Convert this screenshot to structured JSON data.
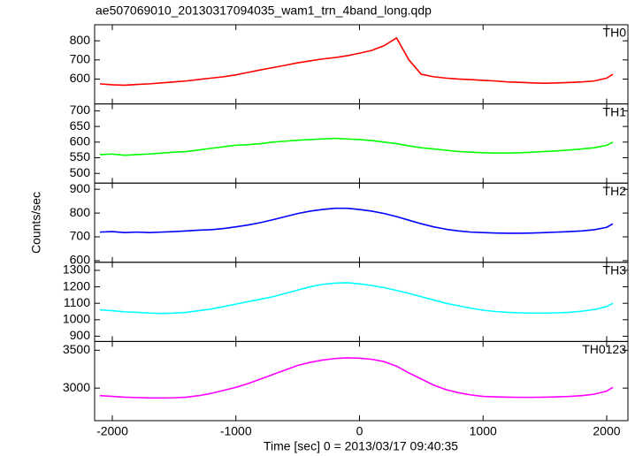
{
  "title": "ae507069010_20130317094035_wam1_trn_4band_long.qdp",
  "x_label": "Time [sec] 0 = 2013/03/17 09:40:35",
  "y_label": "Counts/sec",
  "chart_data": [
    {
      "type": "line",
      "label": "TH0",
      "color": "#ff0000",
      "x": [
        -2100,
        -2000,
        -1900,
        -1800,
        -1700,
        -1600,
        -1500,
        -1400,
        -1300,
        -1200,
        -1100,
        -1000,
        -900,
        -800,
        -700,
        -600,
        -500,
        -400,
        -300,
        -200,
        -100,
        0,
        100,
        200,
        300,
        400,
        500,
        600,
        700,
        800,
        900,
        1000,
        1100,
        1200,
        1300,
        1400,
        1500,
        1600,
        1700,
        1800,
        1900,
        2000,
        2050
      ],
      "values": [
        575,
        570,
        568,
        572,
        575,
        580,
        585,
        590,
        598,
        605,
        612,
        622,
        635,
        648,
        660,
        672,
        685,
        695,
        705,
        712,
        722,
        735,
        750,
        775,
        815,
        700,
        625,
        612,
        605,
        600,
        597,
        593,
        590,
        585,
        583,
        580,
        578,
        580,
        582,
        585,
        590,
        605,
        625
      ],
      "xlim": [
        -2143,
        2172
      ],
      "ylim": [
        470,
        884
      ],
      "yticks": [
        600,
        700,
        800
      ],
      "xticks": [
        -2000,
        -1000,
        0,
        1000,
        2000
      ]
    },
    {
      "type": "line",
      "label": "TH1",
      "color": "#00ff00",
      "x": [
        -2100,
        -2000,
        -1900,
        -1800,
        -1700,
        -1600,
        -1500,
        -1400,
        -1300,
        -1200,
        -1100,
        -1000,
        -900,
        -800,
        -700,
        -600,
        -500,
        -400,
        -300,
        -200,
        -100,
        0,
        100,
        200,
        300,
        400,
        500,
        600,
        700,
        800,
        900,
        1000,
        1100,
        1200,
        1300,
        1400,
        1500,
        1600,
        1700,
        1800,
        1900,
        2000,
        2050
      ],
      "values": [
        560,
        562,
        558,
        560,
        562,
        565,
        568,
        570,
        575,
        580,
        585,
        590,
        592,
        595,
        600,
        603,
        606,
        608,
        610,
        612,
        610,
        608,
        605,
        600,
        595,
        588,
        582,
        578,
        574,
        570,
        568,
        566,
        565,
        565,
        566,
        568,
        570,
        572,
        575,
        578,
        582,
        590,
        600
      ],
      "xlim": [
        -2143,
        2172
      ],
      "ylim": [
        469,
        722
      ],
      "yticks": [
        500,
        550,
        600,
        650,
        700
      ],
      "xticks": [
        -2000,
        -1000,
        0,
        1000,
        2000
      ]
    },
    {
      "type": "line",
      "label": "TH2",
      "color": "#0000ff",
      "x": [
        -2100,
        -2000,
        -1900,
        -1800,
        -1700,
        -1600,
        -1500,
        -1400,
        -1300,
        -1200,
        -1100,
        -1000,
        -900,
        -800,
        -700,
        -600,
        -500,
        -400,
        -300,
        -200,
        -100,
        0,
        100,
        200,
        300,
        400,
        500,
        600,
        700,
        800,
        900,
        1000,
        1100,
        1200,
        1300,
        1400,
        1500,
        1600,
        1700,
        1800,
        1900,
        2000,
        2050
      ],
      "values": [
        720,
        722,
        718,
        720,
        718,
        720,
        722,
        725,
        728,
        730,
        735,
        742,
        750,
        760,
        772,
        785,
        798,
        808,
        815,
        820,
        820,
        815,
        808,
        798,
        785,
        770,
        755,
        742,
        732,
        725,
        720,
        718,
        716,
        715,
        715,
        716,
        718,
        720,
        722,
        725,
        730,
        740,
        755
      ],
      "xlim": [
        -2143,
        2172
      ],
      "ylim": [
        593,
        926
      ],
      "yticks": [
        600,
        700,
        800,
        900
      ],
      "xticks": [
        -2000,
        -1000,
        0,
        1000,
        2000
      ]
    },
    {
      "type": "line",
      "label": "TH3",
      "color": "#00ffff",
      "x": [
        -2100,
        -2000,
        -1900,
        -1800,
        -1700,
        -1600,
        -1500,
        -1400,
        -1300,
        -1200,
        -1100,
        -1000,
        -900,
        -800,
        -700,
        -600,
        -500,
        -400,
        -300,
        -200,
        -100,
        0,
        100,
        200,
        300,
        400,
        500,
        600,
        700,
        800,
        900,
        1000,
        1100,
        1200,
        1300,
        1400,
        1500,
        1600,
        1700,
        1800,
        1900,
        2000,
        2050
      ],
      "values": [
        1060,
        1055,
        1048,
        1045,
        1040,
        1038,
        1040,
        1045,
        1055,
        1065,
        1080,
        1095,
        1110,
        1125,
        1140,
        1160,
        1180,
        1200,
        1215,
        1222,
        1225,
        1218,
        1208,
        1195,
        1178,
        1160,
        1140,
        1120,
        1100,
        1085,
        1070,
        1058,
        1050,
        1045,
        1042,
        1040,
        1040,
        1042,
        1045,
        1052,
        1062,
        1080,
        1100
      ],
      "xlim": [
        -2143,
        2172
      ],
      "ylim": [
        868,
        1349
      ],
      "yticks": [
        900,
        1000,
        1100,
        1200,
        1300
      ],
      "xticks": [
        -2000,
        -1000,
        0,
        1000,
        2000
      ]
    },
    {
      "type": "line",
      "label": "TH0123",
      "color": "#ff00ff",
      "x": [
        -2100,
        -2000,
        -1900,
        -1800,
        -1700,
        -1600,
        -1500,
        -1400,
        -1300,
        -1200,
        -1100,
        -1000,
        -900,
        -800,
        -700,
        -600,
        -500,
        -400,
        -300,
        -200,
        -100,
        0,
        100,
        200,
        300,
        400,
        500,
        600,
        700,
        800,
        900,
        1000,
        1100,
        1200,
        1300,
        1400,
        1500,
        1600,
        1700,
        1800,
        1900,
        2000,
        2050
      ],
      "values": [
        2900,
        2890,
        2880,
        2875,
        2870,
        2870,
        2872,
        2880,
        2900,
        2930,
        2970,
        3010,
        3060,
        3120,
        3180,
        3240,
        3300,
        3340,
        3370,
        3390,
        3400,
        3395,
        3380,
        3350,
        3290,
        3200,
        3120,
        3040,
        2980,
        2940,
        2910,
        2890,
        2885,
        2880,
        2878,
        2878,
        2880,
        2885,
        2890,
        2900,
        2920,
        2960,
        3010
      ],
      "xlim": [
        -2143,
        2172
      ],
      "ylim": [
        2570,
        3616
      ],
      "yticks": [
        3000,
        3500
      ],
      "xticks": [
        -2000,
        -1000,
        0,
        1000,
        2000
      ]
    }
  ]
}
